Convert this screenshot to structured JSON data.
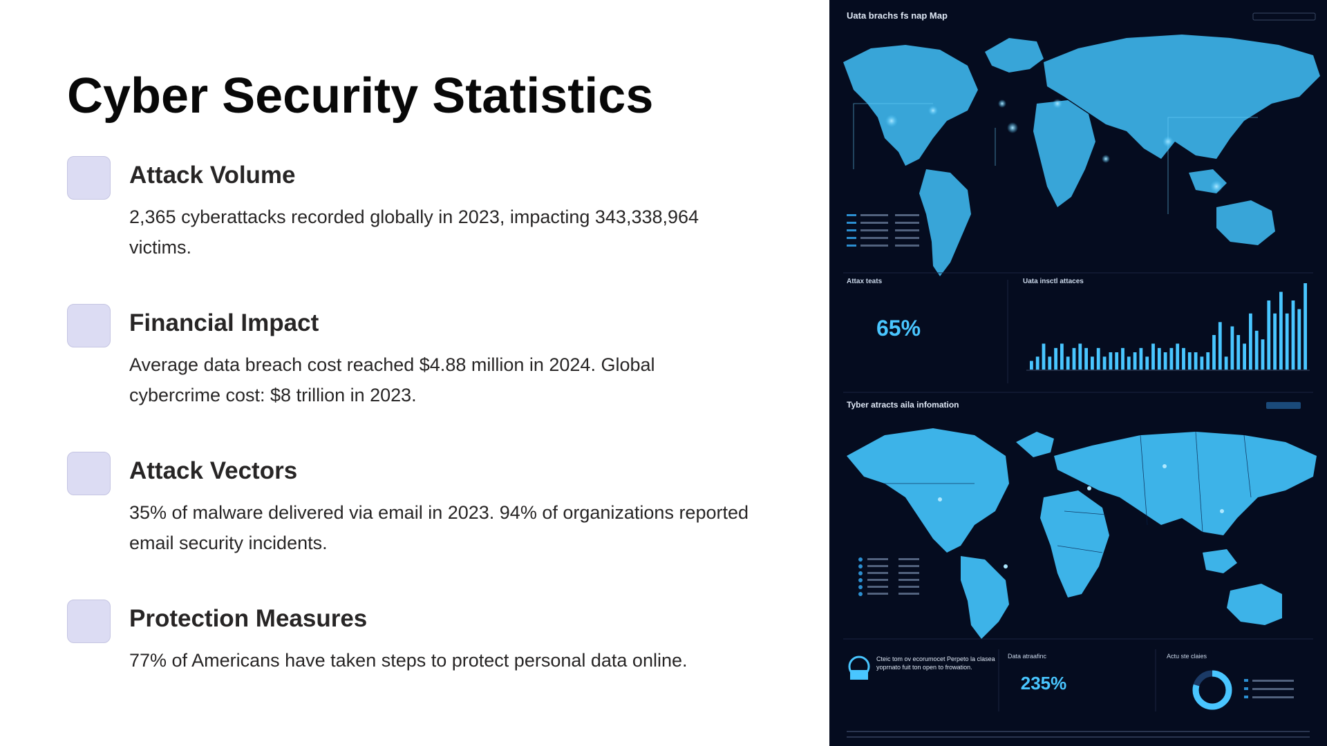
{
  "slide": {
    "title": "Cyber Security Statistics",
    "items": [
      {
        "heading": "Attack Volume",
        "text": "2,365 cyberattacks recorded globally in 2023, impacting 343,338,964 victims."
      },
      {
        "heading": "Financial Impact",
        "text": "Average data breach cost reached $4.88 million in 2024. Global cybercrime cost: $8 trillion in 2023."
      },
      {
        "heading": "Attack Vectors",
        "text": "35% of malware delivered via email in 2023. 94% of organizations reported email security incidents."
      },
      {
        "heading": "Protection Measures",
        "text": "77% of Americans have taken steps to protect personal data online."
      }
    ]
  },
  "dashboard": {
    "map_title": "Uata brachs fs nap Map",
    "attack_stats_label": "Attax teats",
    "attack_stats_value": "65%",
    "bar_panel_label": "Uata insctl attaces",
    "info_title": "Tyber atracts aila infomation",
    "bottom_left_text": "Cteic tom ov ecorumocet Perpeto la clasea yoprnato fuit ton open to frowation.",
    "data_label": "Data atraafinc",
    "data_value": "235%",
    "donut_label": "Actu ste claies",
    "bar_values": [
      2,
      3,
      6,
      3,
      5,
      6,
      3,
      5,
      6,
      5,
      3,
      5,
      3,
      4,
      4,
      5,
      3,
      4,
      5,
      3,
      6,
      5,
      4,
      5,
      6,
      5,
      4,
      4,
      3,
      4,
      8,
      11,
      3,
      10,
      8,
      6,
      13,
      9,
      7,
      16,
      13,
      18,
      13,
      16,
      14,
      20
    ],
    "colors": {
      "bg": "#050c1f",
      "map": "#3db3e8",
      "accent": "#49c6ff",
      "text": "#c9d6e8"
    }
  }
}
